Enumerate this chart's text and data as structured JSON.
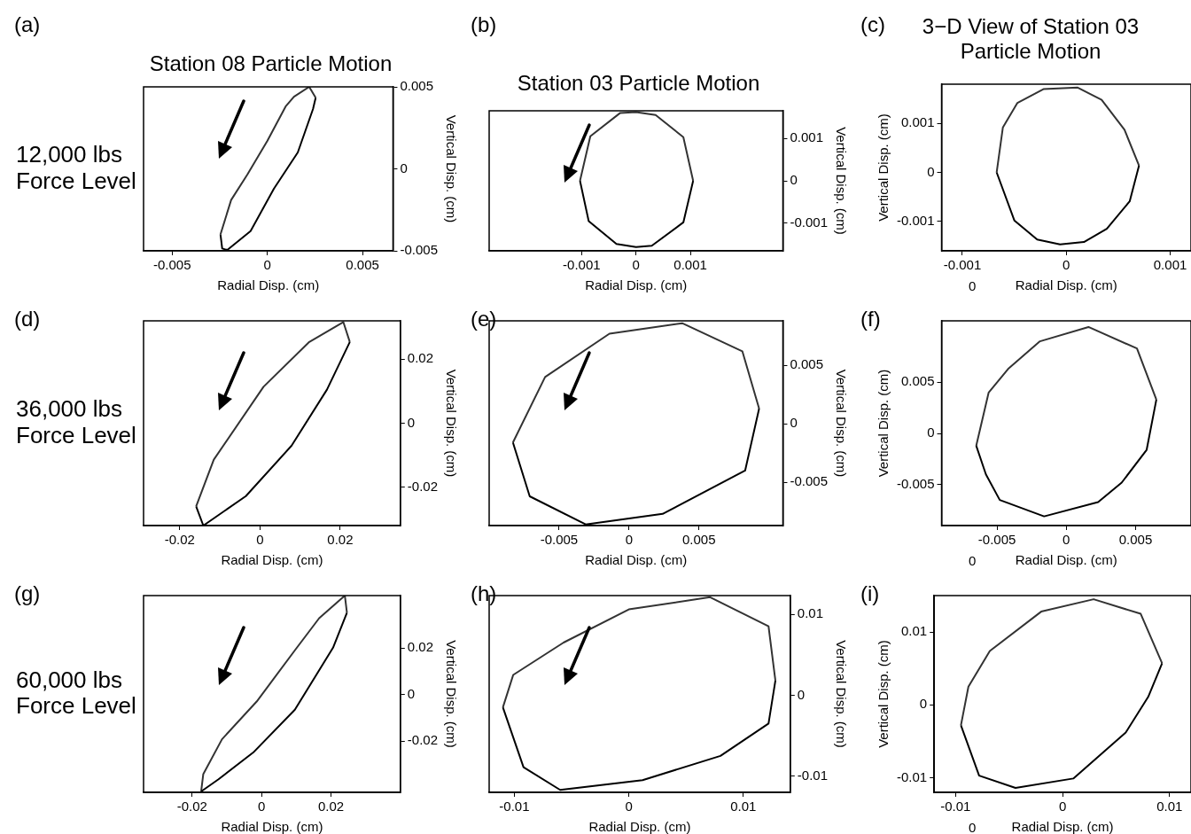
{
  "chart_data": [
    {
      "type": "line",
      "title": "Station 08 Particle Motion",
      "xlabel": "Radial Disp. (cm)",
      "ylabel": "Vertical Disp. (cm)",
      "xlim": [
        -0.0065,
        0.0066
      ],
      "xticks": [
        -0.005,
        0,
        0.005
      ],
      "ylim": [
        -0.005,
        0.005
      ],
      "yticks": [
        -0.005,
        0,
        0.005
      ],
      "marker": "none",
      "legend": false,
      "annotations": [
        "(a)",
        "12,000 lbs Force Level"
      ],
      "series": [
        {
          "color": "#000000",
          "x": [
            0.00254,
            0.0024,
            0.0016,
            0.00035,
            -0.00088,
            -0.0021,
            -0.00237,
            -0.00246
          ],
          "values": [
            0.00434,
            0.00365,
            0.001,
            -0.0012,
            -0.0038,
            -0.00495,
            -0.00486,
            -0.004
          ]
        },
        {
          "color": "#333333",
          "x": [
            -0.00246,
            -0.0019,
            -0.00105,
            0,
            0.00096,
            0.0014,
            0.0022,
            0.00254
          ],
          "values": [
            -0.004,
            -0.0019,
            -0.00035,
            0.0017,
            0.0038,
            0.0044,
            0.005,
            0.00434
          ]
        }
      ]
    },
    {
      "type": "line",
      "title": "Station 03 Particle Motion",
      "xlabel": "Radial Disp. (cm)",
      "ylabel": "Vertical Disp. (cm)",
      "xlim": [
        -0.0027,
        0.0027
      ],
      "xticks": [
        -0.001,
        0,
        0.001
      ],
      "ylim": [
        -0.00165,
        0.00165
      ],
      "yticks": [
        -0.001,
        0,
        0.001
      ],
      "marker": "none",
      "legend": false,
      "annotations": [
        "(b)"
      ],
      "series": [
        {
          "color": "#000000",
          "x": [
            0.00105,
            0.00087,
            0.00029,
            0,
            -0.00036,
            -0.00087,
            -0.00103
          ],
          "values": [
            0,
            -0.00098,
            -0.00153,
            -0.00156,
            -0.00149,
            -0.00095,
            0
          ]
        },
        {
          "color": "#333333",
          "x": [
            -0.00103,
            -0.00084,
            -0.00029,
            0,
            0.00036,
            0.00087,
            0.00105
          ],
          "values": [
            0,
            0.00105,
            0.0016,
            0.00162,
            0.00155,
            0.00103,
            0
          ]
        }
      ]
    },
    {
      "type": "line",
      "title": "3−D View of Station 03 Particle Motion",
      "xlabel": "Radial Disp. (cm)",
      "ylabel": "Vertical Disp. (cm)",
      "xlim": [
        -0.0012,
        0.0012
      ],
      "xticks": [
        -0.001,
        0,
        0.001
      ],
      "ylim": [
        -0.0016,
        0.0018
      ],
      "yticks": [
        -0.001,
        0,
        0.001
      ],
      "marker": "none",
      "legend": false,
      "annotations": [
        "(c)",
        "0"
      ],
      "series": [
        {
          "color": "#000000",
          "x": [
            0.0007,
            0.00061,
            0.00039,
            0.00017,
            -6e-05,
            -0.00028,
            -0.0005,
            -0.00067
          ],
          "values": [
            0.00014,
            -0.00059,
            -0.00115,
            -0.00142,
            -0.00147,
            -0.00137,
            -0.00098,
            0
          ]
        },
        {
          "color": "#333333",
          "x": [
            -0.00067,
            -0.00061,
            -0.00047,
            -0.00022,
            0.00011,
            0.00034,
            0.00056,
            0.0007
          ],
          "values": [
            0,
            0.00092,
            0.00142,
            0.0017,
            0.00173,
            0.00148,
            0.00087,
            0.00014
          ]
        }
      ]
    },
    {
      "type": "line",
      "xlabel": "Radial Disp. (cm)",
      "ylabel": "Vertical Disp. (cm)",
      "xlim": [
        -0.029,
        0.035
      ],
      "xticks": [
        -0.02,
        0,
        0.02
      ],
      "ylim": [
        -0.032,
        0.032
      ],
      "yticks": [
        -0.02,
        0,
        0.02
      ],
      "marker": "none",
      "legend": false,
      "annotations": [
        "(d)",
        "36,000 lbs Force Level"
      ],
      "series": [
        {
          "color": "#000000",
          "x": [
            0.0224,
            0.0167,
            0.0079,
            -0.0035,
            -0.0141,
            -0.0159
          ],
          "values": [
            0.0254,
            0.0105,
            -0.007,
            -0.0228,
            -0.032,
            -0.026
          ]
        },
        {
          "color": "#333333",
          "x": [
            -0.0159,
            -0.0115,
            0.0009,
            0.0123,
            0.0208,
            0.0224
          ],
          "values": [
            -0.026,
            -0.0114,
            0.0114,
            0.0254,
            0.0316,
            0.0254
          ]
        }
      ]
    },
    {
      "type": "line",
      "xlabel": "Radial Disp. (cm)",
      "ylabel": "Vertical Disp. (cm)",
      "xlim": [
        -0.01,
        0.011
      ],
      "xticks": [
        -0.005,
        0,
        0.005
      ],
      "ylim": [
        -0.0087,
        0.0088
      ],
      "yticks": [
        -0.005,
        0,
        0.005
      ],
      "marker": "none",
      "legend": false,
      "annotations": [
        "(e)"
      ],
      "series": [
        {
          "color": "#000000",
          "x": [
            0.0093,
            0.0083,
            0.0024,
            -0.0031,
            -0.0071,
            -0.0083
          ],
          "values": [
            0.0013,
            -0.004,
            -0.0077,
            -0.0086,
            -0.0062,
            -0.0016
          ]
        },
        {
          "color": "#333333",
          "x": [
            -0.0083,
            -0.006,
            -0.0014,
            0.0038,
            0.0081,
            0.0093
          ],
          "values": [
            -0.0016,
            0.004,
            0.0077,
            0.0086,
            0.0062,
            0.0013
          ]
        }
      ]
    },
    {
      "type": "line",
      "xlabel": "Radial Disp. (cm)",
      "ylabel": "Vertical Disp. (cm)",
      "xlim": [
        -0.009,
        0.009
      ],
      "xticks": [
        -0.005,
        0,
        0.005
      ],
      "ylim": [
        -0.009,
        0.011
      ],
      "yticks": [
        -0.005,
        0,
        0.005
      ],
      "marker": "none",
      "legend": false,
      "annotations": [
        "(f)",
        "0"
      ],
      "series": [
        {
          "color": "#000000",
          "x": [
            0.0065,
            0.0058,
            0.004,
            0.0023,
            -0.0016,
            -0.0048,
            -0.0058,
            -0.0065
          ],
          "values": [
            0.0033,
            -0.0016,
            -0.0048,
            -0.0067,
            -0.0081,
            -0.0065,
            -0.004,
            -0.0012
          ]
        },
        {
          "color": "#333333",
          "x": [
            -0.0065,
            -0.0056,
            -0.0042,
            -0.0019,
            0.0016,
            0.0051,
            0.0065
          ],
          "values": [
            -0.0012,
            0.004,
            0.0063,
            0.009,
            0.0104,
            0.0083,
            0.0033
          ]
        }
      ]
    },
    {
      "type": "line",
      "xlabel": "Radial Disp. (cm)",
      "ylabel": "Vertical Disp. (cm)",
      "xlim": [
        -0.034,
        0.04
      ],
      "xticks": [
        -0.02,
        0,
        0.02
      ],
      "ylim": [
        -0.042,
        0.0425
      ],
      "yticks": [
        -0.02,
        0,
        0.02
      ],
      "marker": "none",
      "legend": false,
      "annotations": [
        "(g)",
        "60,000 lbs Force Level"
      ],
      "series": [
        {
          "color": "#000000",
          "x": [
            0.0246,
            0.0206,
            0.0096,
            -0.0024,
            -0.0124,
            -0.0174
          ],
          "values": [
            0.0351,
            0.0201,
            -0.0065,
            -0.0249,
            -0.0364,
            -0.0416
          ]
        },
        {
          "color": "#333333",
          "x": [
            -0.0174,
            -0.0168,
            -0.0114,
            -0.0014,
            0.0096,
            0.0166,
            0.024,
            0.0246
          ],
          "values": [
            -0.0416,
            -0.0342,
            -0.0192,
            -0.003,
            0.019,
            0.0328,
            0.0425,
            0.0351
          ]
        }
      ]
    },
    {
      "type": "line",
      "xlabel": "Radial Disp. (cm)",
      "ylabel": "Vertical Disp. (cm)",
      "xlim": [
        -0.0122,
        0.0141
      ],
      "xticks": [
        -0.01,
        0,
        0.01
      ],
      "ylim": [
        -0.012,
        0.0123
      ],
      "yticks": [
        -0.01,
        0,
        0.01
      ],
      "marker": "none",
      "legend": false,
      "annotations": [
        "(h)"
      ],
      "series": [
        {
          "color": "#000000",
          "x": [
            0.0128,
            0.0122,
            0.008,
            0.0012,
            -0.006,
            -0.0092,
            -0.011
          ],
          "values": [
            0.0018,
            -0.0035,
            -0.0075,
            -0.0105,
            -0.0117,
            -0.0089,
            -0.0015
          ]
        },
        {
          "color": "#333333",
          "x": [
            -0.011,
            -0.0101,
            -0.0057,
            0,
            0.0071,
            0.0122,
            0.0128
          ],
          "values": [
            -0.0015,
            0.0025,
            0.0065,
            0.0106,
            0.0121,
            0.0085,
            0.0018
          ]
        }
      ]
    },
    {
      "type": "line",
      "xlabel": "Radial Disp. (cm)",
      "ylabel": "Vertical Disp. (cm)",
      "xlim": [
        -0.012,
        0.012
      ],
      "xticks": [
        -0.01,
        0,
        0.01
      ],
      "ylim": [
        -0.012,
        0.015
      ],
      "yticks": [
        -0.01,
        0,
        0.01
      ],
      "marker": "none",
      "legend": false,
      "annotations": [
        "(i)",
        "0"
      ],
      "series": [
        {
          "color": "#000000",
          "x": [
            0.0093,
            0.008,
            0.0059,
            0.001,
            -0.0044,
            -0.0078,
            -0.0095
          ],
          "values": [
            0.0057,
            0.0011,
            -0.0038,
            -0.0101,
            -0.0114,
            -0.0097,
            -0.0028
          ]
        },
        {
          "color": "#333333",
          "x": [
            -0.0095,
            -0.0088,
            -0.0068,
            -0.002,
            0.0029,
            0.0073,
            0.0093
          ],
          "values": [
            -0.0028,
            0.0025,
            0.0074,
            0.0128,
            0.0145,
            0.0125,
            0.0057
          ]
        }
      ]
    }
  ]
}
